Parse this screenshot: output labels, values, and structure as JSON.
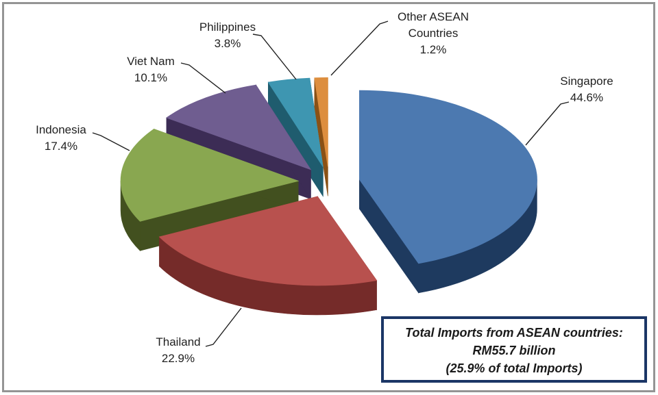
{
  "chart_data": {
    "type": "pie",
    "style": "3d-exploded",
    "start_angle_deg": 0,
    "direction": "clockwise",
    "legend": "none",
    "labels": "outside-with-leader-lines",
    "unit": "%",
    "slices": [
      {
        "label": "Singapore",
        "value": 44.6,
        "pct_label": "44.6%",
        "color": "#4C79B0",
        "side_color": "#1E3A5F"
      },
      {
        "label": "Thailand",
        "value": 22.9,
        "pct_label": "22.9%",
        "color": "#B8514E",
        "side_color": "#752B29"
      },
      {
        "label": "Indonesia",
        "value": 17.4,
        "pct_label": "17.4%",
        "color": "#89A750",
        "side_color": "#42501F"
      },
      {
        "label": "Viet Nam",
        "value": 10.1,
        "pct_label": "10.1%",
        "color": "#6F5D90",
        "side_color": "#3C2C55"
      },
      {
        "label": "Philippines",
        "value": 3.8,
        "pct_label": "3.8%",
        "color": "#3E96B1",
        "side_color": "#1F5C6E"
      },
      {
        "label": "Other ASEAN Countries",
        "value": 1.2,
        "pct_label": "1.2%",
        "color": "#DD8E3E",
        "side_color": "#8A5115"
      }
    ]
  },
  "note": {
    "lines": [
      "Total Imports from ASEAN countries:",
      "RM55.7 billion",
      "(25.9% of total Imports)"
    ]
  },
  "colors": {
    "frame": "#949494",
    "note_border": "#1B3666",
    "label_text": "#1F1F1F",
    "leader_line": "#1F1F1F",
    "background": "#FFFFFF"
  }
}
